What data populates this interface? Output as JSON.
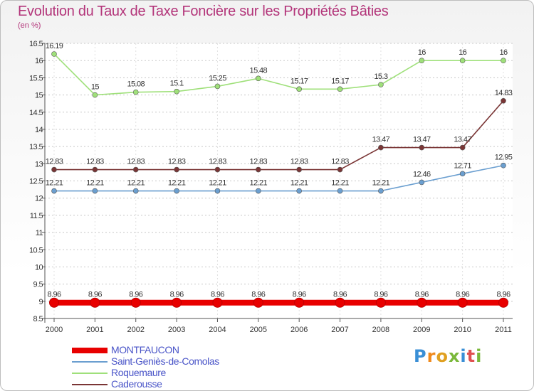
{
  "title": "Evolution du Taux de Taxe Foncière sur les Propriétés Bâties",
  "subtitle": "(en %)",
  "logo": "Proxiti",
  "chart_data": {
    "type": "line",
    "x": [
      "2000",
      "2001",
      "2002",
      "2003",
      "2004",
      "2005",
      "2006",
      "2007",
      "2008",
      "2009",
      "2010",
      "2011"
    ],
    "ylim": [
      8.5,
      16.5
    ],
    "yticks": [
      "8.5",
      "9",
      "9.5",
      "10",
      "10.5",
      "11",
      "11.5",
      "12",
      "12.5",
      "13",
      "13.5",
      "14",
      "14.5",
      "15",
      "15.5",
      "16",
      "16.5"
    ],
    "grid": "horizontal dashed",
    "legend_position": "bottom-left",
    "series": [
      {
        "name": "MONTFAUCON",
        "color": "#e80000",
        "values": [
          8.96,
          8.96,
          8.96,
          8.96,
          8.96,
          8.96,
          8.96,
          8.96,
          8.96,
          8.96,
          8.96,
          8.96
        ],
        "labels": [
          "8.96",
          "8.96",
          "8.96",
          "8.96",
          "8.96",
          "8.96",
          "8.96",
          "8.96",
          "8.96",
          "8.96",
          "8.96",
          "8.96"
        ]
      },
      {
        "name": "Saint-Geniès-de-Comolas",
        "color": "#6b9fd0",
        "values": [
          12.21,
          12.21,
          12.21,
          12.21,
          12.21,
          12.21,
          12.21,
          12.21,
          12.21,
          12.46,
          12.71,
          12.95
        ],
        "labels": [
          "12.21",
          "12.21",
          "12.21",
          "12.21",
          "12.21",
          "12.21",
          "12.21",
          "12.21",
          "12.21",
          "12.46",
          "12.71",
          "12.95"
        ]
      },
      {
        "name": "Roquemaure",
        "color": "#9fe07a",
        "values": [
          16.19,
          15,
          15.08,
          15.1,
          15.25,
          15.48,
          15.17,
          15.17,
          15.3,
          16,
          16,
          16
        ],
        "labels": [
          "16.19",
          "15",
          "15.08",
          "15.1",
          "15.25",
          "15.48",
          "15.17",
          "15.17",
          "15.3",
          "16",
          "16",
          "16"
        ]
      },
      {
        "name": "Caderousse",
        "color": "#7a3535",
        "values": [
          12.83,
          12.83,
          12.83,
          12.83,
          12.83,
          12.83,
          12.83,
          12.83,
          13.47,
          13.47,
          13.47,
          14.83
        ],
        "labels": [
          "12.83",
          "12.83",
          "12.83",
          "12.83",
          "12.83",
          "12.83",
          "12.83",
          "12.83",
          "13.47",
          "13.47",
          "13.47",
          "14.83"
        ]
      }
    ]
  }
}
